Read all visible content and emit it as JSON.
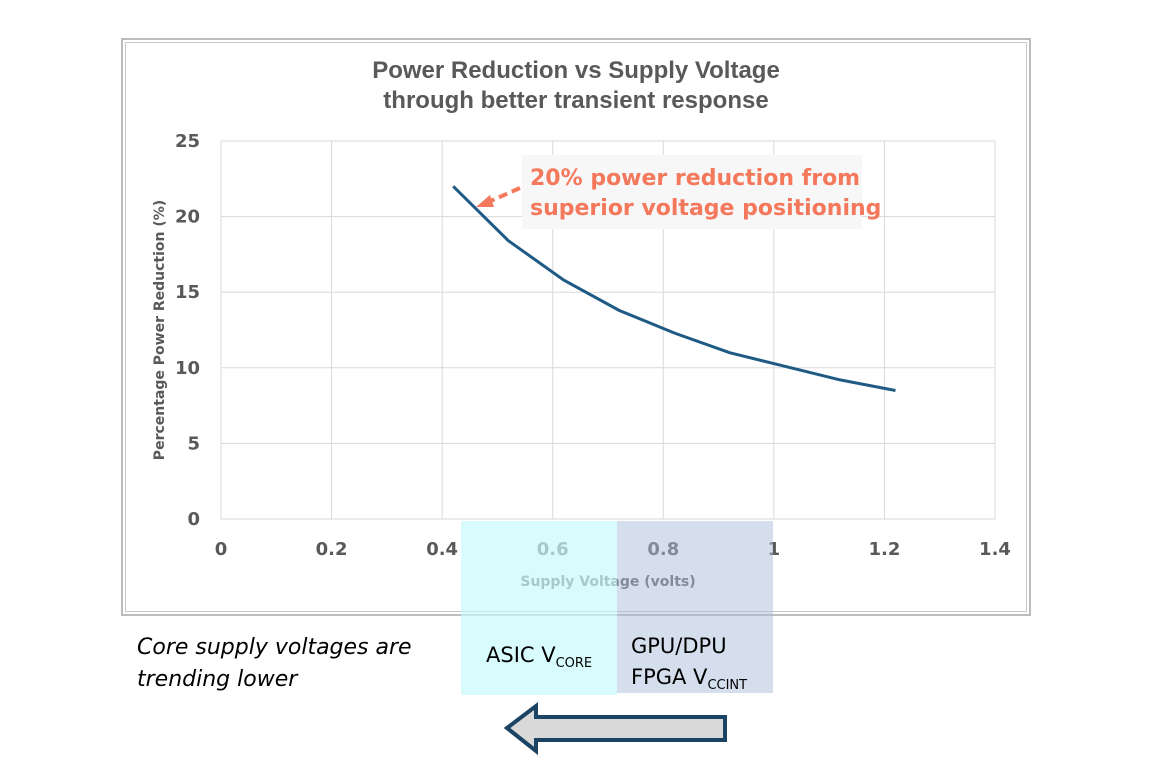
{
  "chart_data": {
    "type": "line",
    "title": "Power Reduction vs Supply Voltage",
    "subtitle": "through better transient response",
    "xlabel": "Supply Voltage (volts)",
    "ylabel": "Percentage Power Reduction (%)",
    "xlim": [
      0,
      1.4
    ],
    "ylim": [
      0,
      25
    ],
    "xticks": [
      "0",
      "0.2",
      "0.4",
      "0.6",
      "0.8",
      "1",
      "1.2",
      "1.4"
    ],
    "yticks": [
      "0",
      "5",
      "10",
      "15",
      "20",
      "25"
    ],
    "grid": true,
    "series": [
      {
        "x": [
          0.42,
          0.52,
          0.62,
          0.72,
          0.82,
          0.92,
          1.02,
          1.12,
          1.22
        ],
        "y": [
          22,
          18.4,
          15.8,
          13.8,
          12.3,
          11.0,
          10.1,
          9.2,
          8.5
        ],
        "color": "#1f5a85"
      }
    ],
    "annotation": {
      "line1": "20% power reduction from",
      "line2": "superior voltage positioning",
      "color": "#f4785c"
    }
  },
  "regions": {
    "asic": {
      "main": "ASIC V",
      "sub": "CORE"
    },
    "gpu": {
      "line1": "GPU/DPU",
      "main": "FPGA V",
      "sub": "CCINT"
    }
  },
  "note": {
    "line1": "Core supply voltages are",
    "line2": "trending lower"
  }
}
